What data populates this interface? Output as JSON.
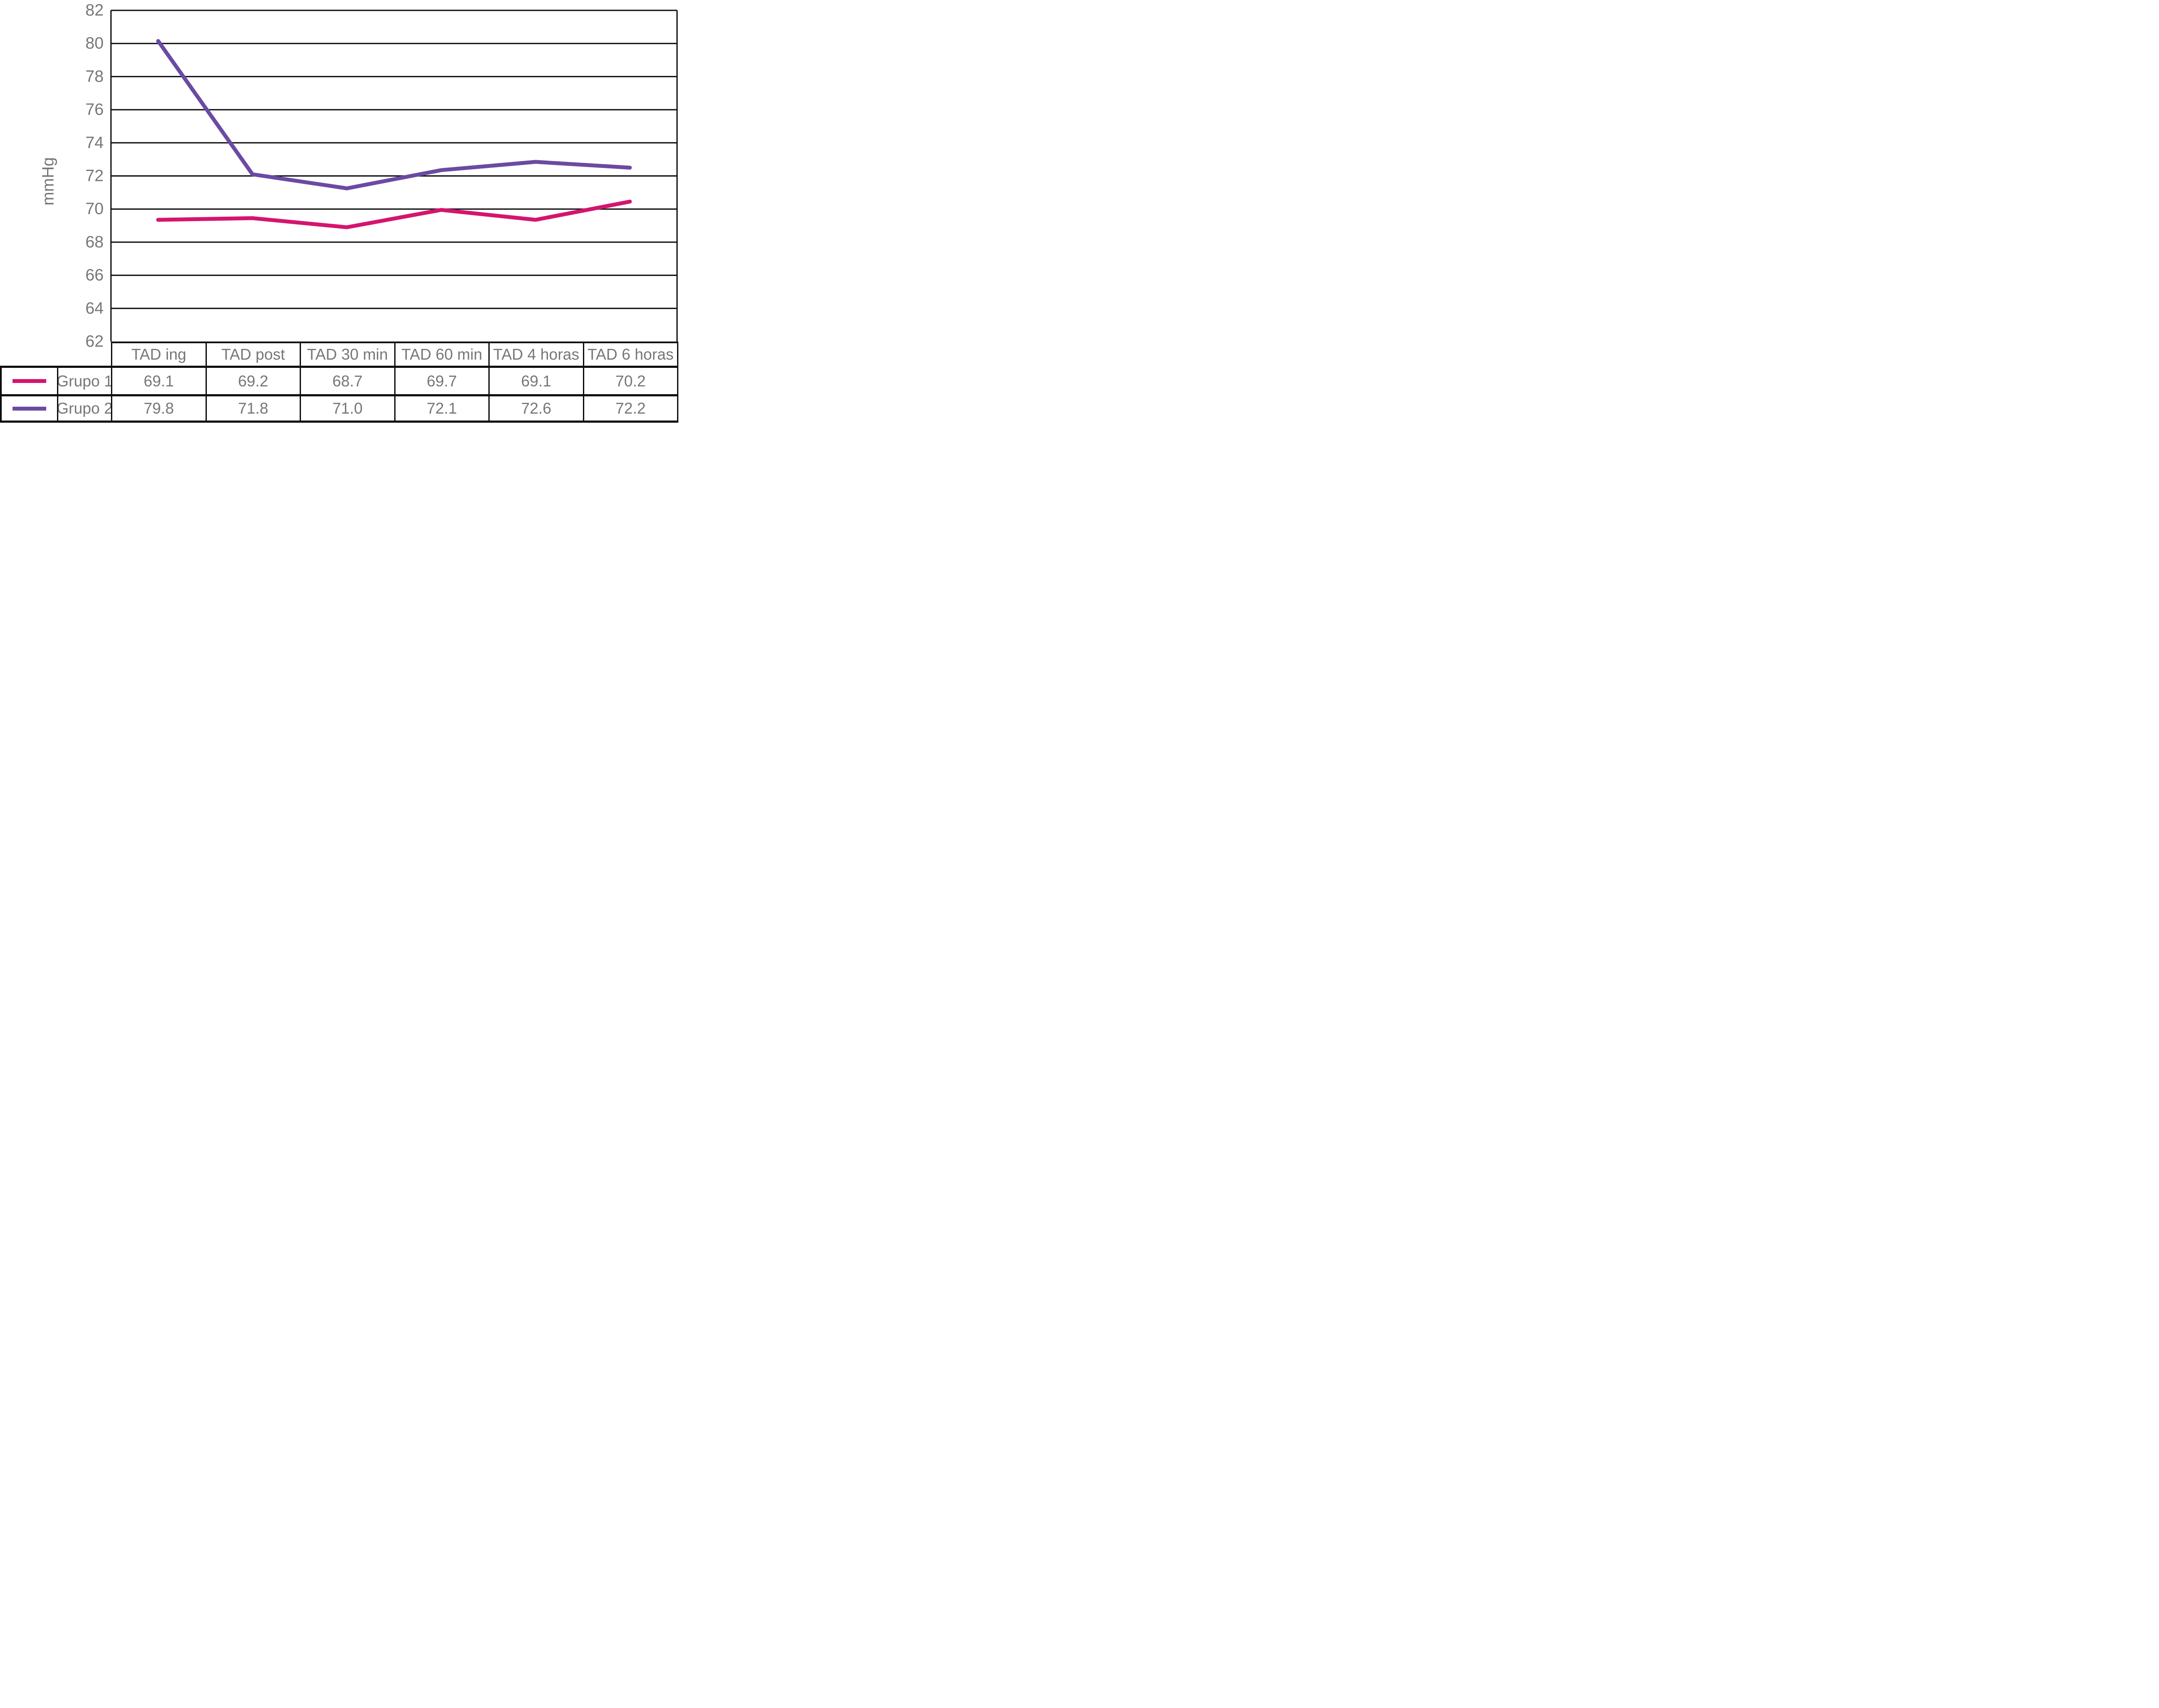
{
  "chart_data": {
    "type": "line",
    "ylabel": "mmHg",
    "categories": [
      "TAD ing",
      "TAD post",
      "TAD 30 min",
      "TAD 60 min",
      "TAD 4 horas",
      "TAD 6 horas"
    ],
    "series": [
      {
        "name": "Grupo 1",
        "color": "#d4156e",
        "values": [
          "69.1",
          "69.2",
          "68.7",
          "69.7",
          "69.1",
          "70.2"
        ],
        "plotted_values": [
          69.35,
          69.45,
          68.9,
          69.95,
          69.35,
          70.45
        ]
      },
      {
        "name": "Grupo 2",
        "color": "#6b4aa2",
        "values": [
          "79.8",
          "71.8",
          "71.0",
          "72.1",
          "72.6",
          "72.2"
        ],
        "plotted_values": [
          80.15,
          72.1,
          71.25,
          72.35,
          72.85,
          72.5
        ]
      }
    ],
    "ylim": [
      62,
      82
    ],
    "y_ticks": [
      82,
      80,
      78,
      76,
      74,
      72,
      70,
      68,
      66,
      64,
      62
    ],
    "ytick_step": 2,
    "grid": "horizontal",
    "gridline_color": "#0d0d0d",
    "label_color": "#777777",
    "background_color": "#ffffff",
    "legend_position": "table-left"
  }
}
